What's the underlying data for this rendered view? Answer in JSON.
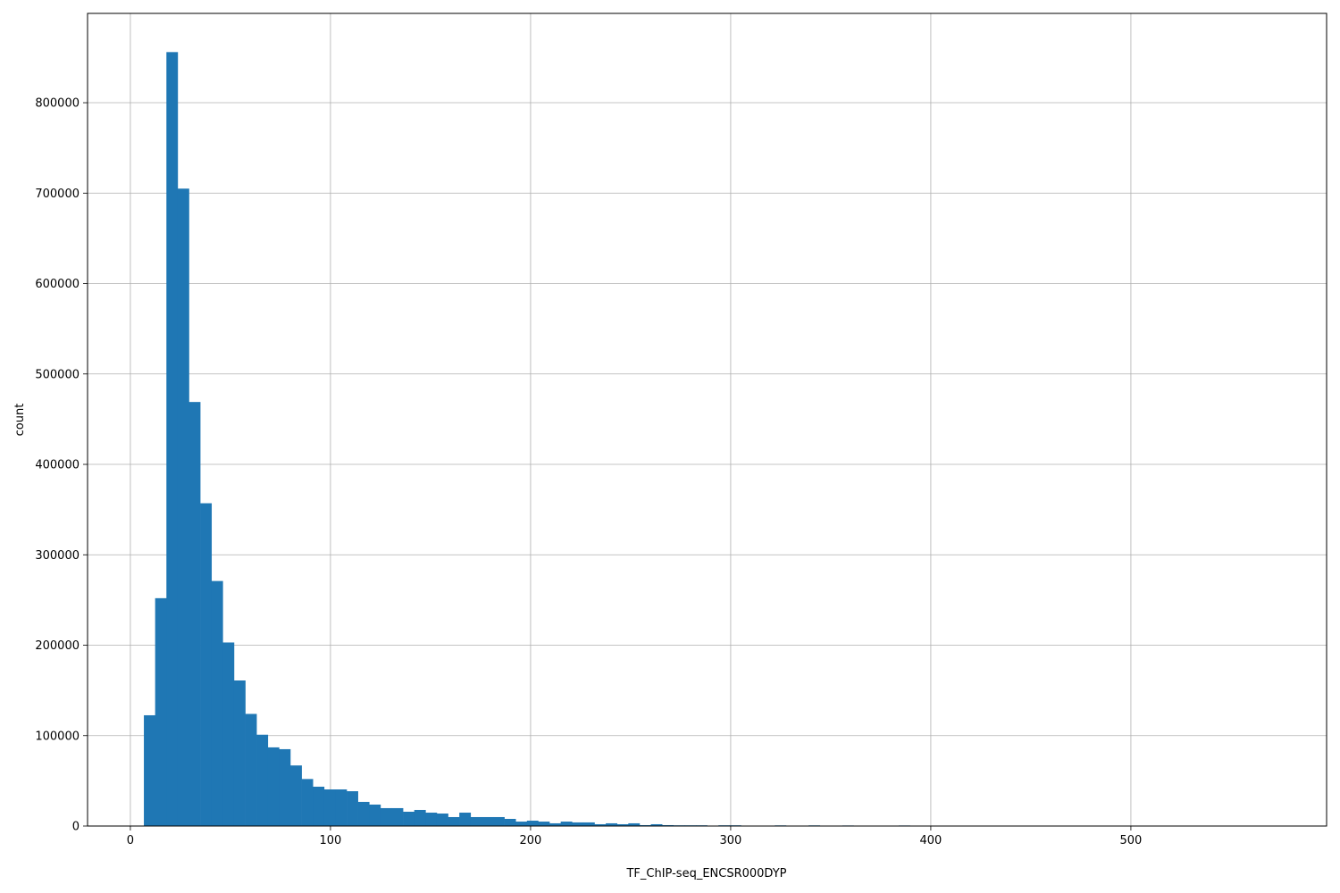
{
  "chart_data": {
    "type": "bar",
    "subtype": "histogram",
    "title": "",
    "xlabel": "TF_ChIP-seq_ENCSR000DYP",
    "ylabel": "count",
    "xlim": [
      -21.4,
      597.8
    ],
    "ylim": [
      0,
      898800
    ],
    "bin_start": 6.75,
    "bin_width": 5.63,
    "x_ticks": [
      0,
      100,
      200,
      300,
      400,
      500
    ],
    "y_ticks": [
      0,
      100000,
      200000,
      300000,
      400000,
      500000,
      600000,
      700000,
      800000
    ],
    "grid": true,
    "bar_color": "#1f77b4",
    "grid_color": "#b0b0b0",
    "values": [
      122500,
      252000,
      856000,
      705000,
      469000,
      357000,
      271000,
      203000,
      161000,
      124000,
      101000,
      87000,
      85000,
      67000,
      52000,
      43500,
      40500,
      40500,
      38500,
      26700,
      23700,
      19800,
      19800,
      15800,
      17800,
      14800,
      13800,
      9900,
      14800,
      9900,
      9900,
      9900,
      7900,
      4900,
      5900,
      4900,
      3000,
      4900,
      4000,
      4000,
      2000,
      3000,
      2000,
      3000,
      1000,
      2000,
      1000,
      800,
      800,
      800,
      0,
      800,
      800,
      0,
      0,
      0,
      700,
      0,
      0,
      700,
      0,
      0,
      600,
      0,
      0,
      0,
      0,
      600,
      0,
      0,
      0,
      0,
      0,
      0,
      0,
      0,
      0,
      0,
      0,
      0,
      0,
      0,
      0,
      0,
      0,
      0,
      0,
      0,
      0,
      0,
      0,
      0,
      0,
      0,
      0,
      0,
      0,
      0,
      0,
      50
    ]
  }
}
